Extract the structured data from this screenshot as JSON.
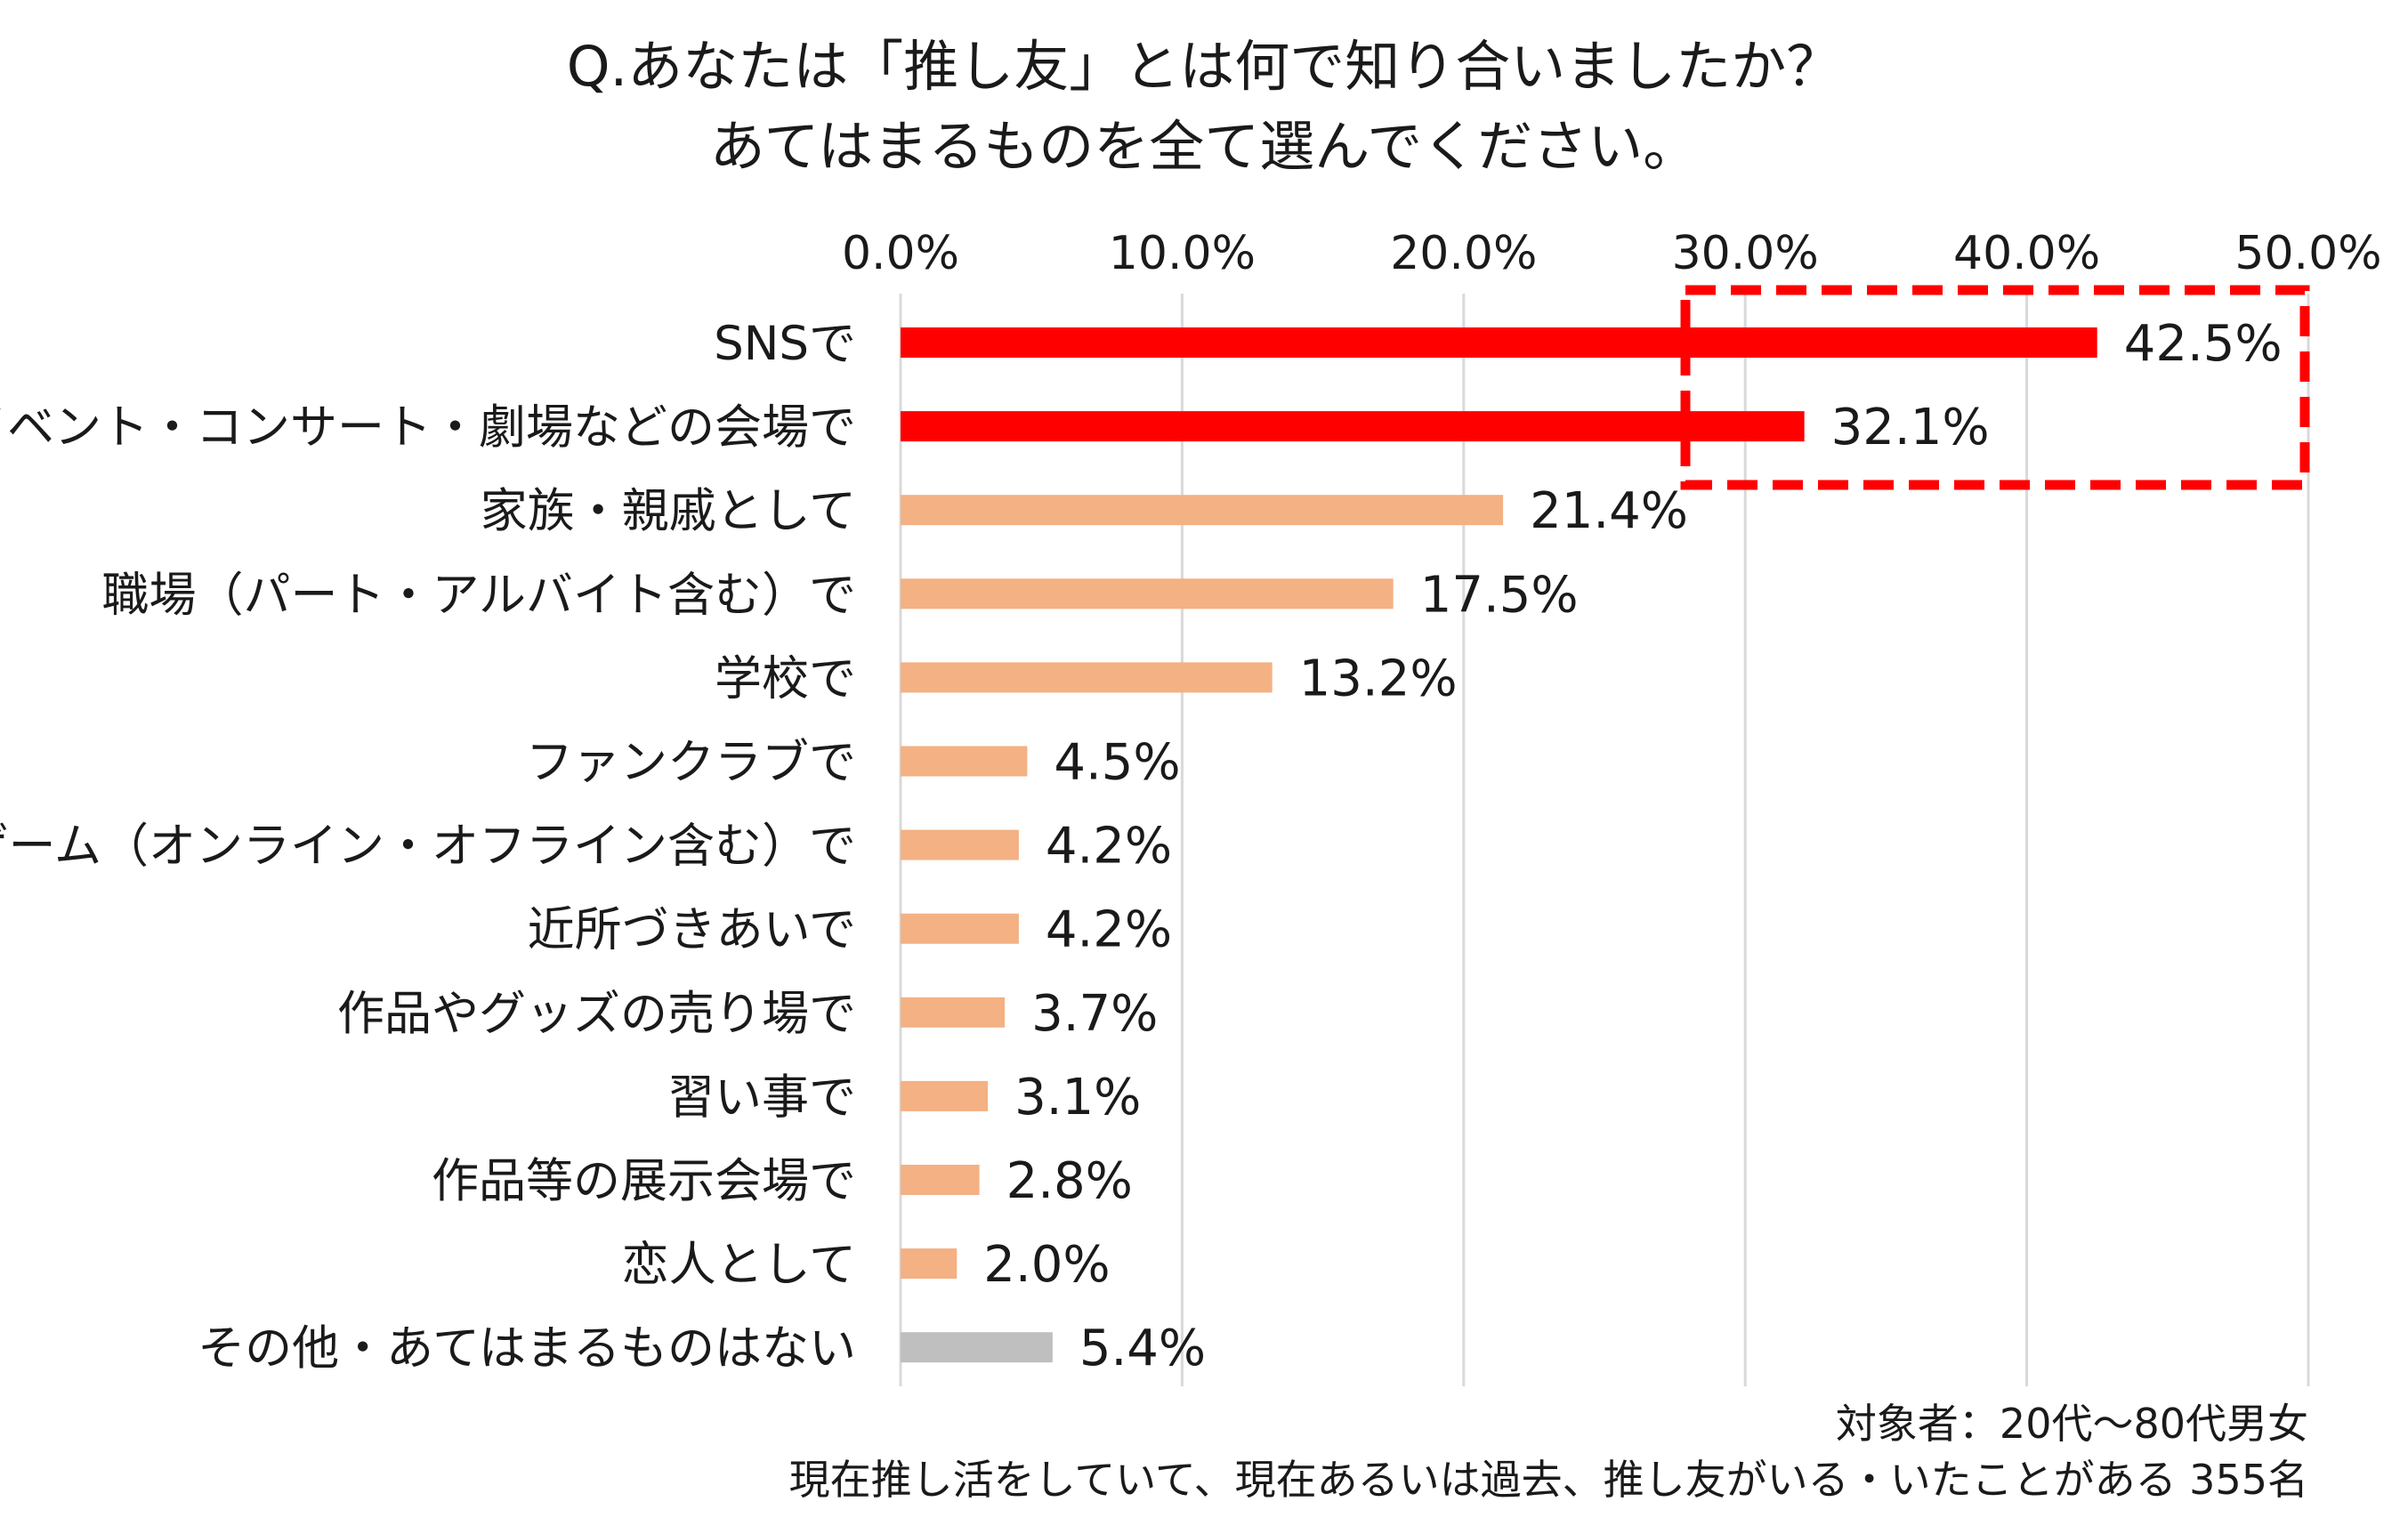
{
  "title": {
    "line1": "Q.あなたは「推し友」とは何で知り合いましたか？",
    "line2": "あてはまるものを全て選んでください。"
  },
  "note": {
    "line1": "対象者：20代～80代男女",
    "line2": "現在推し活をしていて、現在あるいは過去、推し友がいる・いたことがある 355名"
  },
  "colors": {
    "highlight": "#ff0000",
    "normal": "#f4b183",
    "other": "#bfbfbf",
    "grid": "#d9d9d9",
    "callout_border": "#ff0000"
  },
  "chart_data": {
    "type": "bar",
    "orientation": "horizontal",
    "xlim": [
      0,
      50
    ],
    "ticks": [
      {
        "value": 0,
        "label": "0.0%"
      },
      {
        "value": 10,
        "label": "10.0%"
      },
      {
        "value": 20,
        "label": "20.0%"
      },
      {
        "value": 30,
        "label": "30.0%"
      },
      {
        "value": 40,
        "label": "40.0%"
      },
      {
        "value": 50,
        "label": "50.0%"
      }
    ],
    "tick_position": "top",
    "grid": true,
    "legend": "none",
    "highlight_callout": {
      "style": "dashed-box",
      "covers": [
        "SNSで",
        "イベント・コンサート・劇場などの会場で"
      ]
    },
    "categories": [
      "SNSで",
      "イベント・コンサート・劇場などの会場で",
      "家族・親戚として",
      "職場（パート・アルバイト含む）で",
      "学校で",
      "ファンクラブで",
      "ゲーム（オンライン・オフライン含む）で",
      "近所づきあいで",
      "作品やグッズの売り場で",
      "習い事で",
      "作品等の展示会場で",
      "恋人として",
      "その他・あてはまるものはない"
    ],
    "values": [
      42.5,
      32.1,
      21.4,
      17.5,
      13.2,
      4.5,
      4.2,
      4.2,
      3.7,
      3.1,
      2.8,
      2.0,
      5.4
    ],
    "value_labels": [
      "42.5%",
      "32.1%",
      "21.4%",
      "17.5%",
      "13.2%",
      "4.5%",
      "4.2%",
      "4.2%",
      "3.7%",
      "3.1%",
      "2.8%",
      "2.0%",
      "5.4%"
    ],
    "bar_color_keys": [
      "highlight",
      "highlight",
      "normal",
      "normal",
      "normal",
      "normal",
      "normal",
      "normal",
      "normal",
      "normal",
      "normal",
      "normal",
      "other"
    ]
  }
}
